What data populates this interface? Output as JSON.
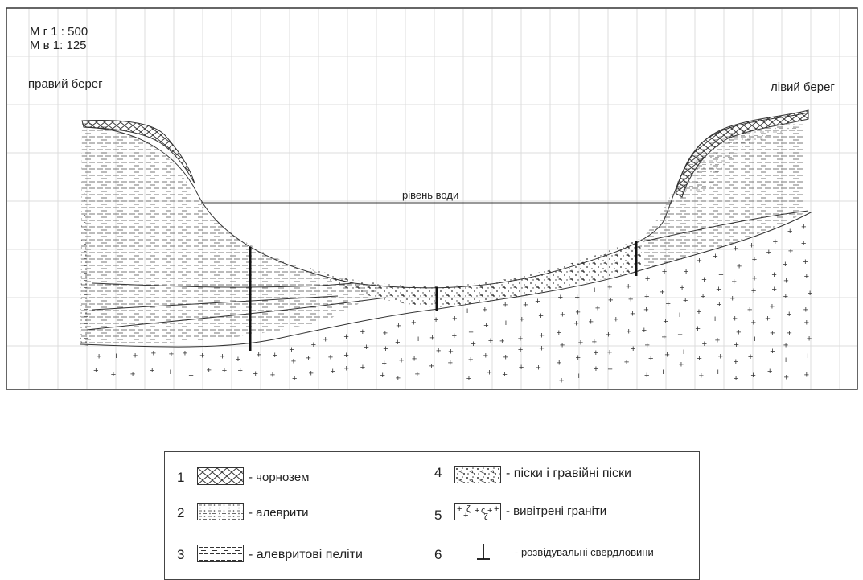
{
  "scale": {
    "horizontal": "М г 1 : 500",
    "vertical": "М в 1: 125"
  },
  "bank_labels": {
    "right_bank": "правий берег",
    "left_bank": "лівий берег"
  },
  "water_level_label": "рівень води",
  "legend": {
    "items": [
      {
        "num": "1",
        "text": "- чорнозем",
        "pattern": "chernozem"
      },
      {
        "num": "2",
        "text": "- алеврити",
        "pattern": "silt"
      },
      {
        "num": "3",
        "text": "- алевритові пеліти",
        "pattern": "silty-pelite"
      },
      {
        "num": "4",
        "text": "- піски і гравійні піски",
        "pattern": "sand-gravel"
      },
      {
        "num": "5",
        "text": "- вивітрені граніти",
        "pattern": "weathered-granite"
      },
      {
        "num": "6",
        "text": "-  розвідувальні свердловини",
        "pattern": "borehole"
      }
    ]
  },
  "colors": {
    "line": "#333333",
    "grid": "#dcdcdc",
    "frame": "#333333"
  }
}
